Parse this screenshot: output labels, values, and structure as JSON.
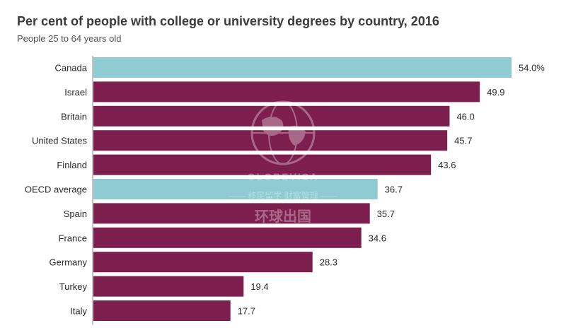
{
  "chart_data": {
    "type": "bar",
    "orientation": "horizontal",
    "title": "Per cent of people with college or university degrees by country, 2016",
    "subtitle": "People 25 to 64 years old",
    "categories": [
      "Canada",
      "Israel",
      "Britain",
      "United States",
      "Finland",
      "OECD average",
      "Spain",
      "France",
      "Germany",
      "Turkey",
      "Italy"
    ],
    "values": [
      54.0,
      49.9,
      46.0,
      45.7,
      43.6,
      36.7,
      35.7,
      34.6,
      28.3,
      19.4,
      17.7
    ],
    "value_labels": [
      "54.0%",
      "49.9",
      "46.0",
      "45.7",
      "43.6",
      "36.7",
      "35.7",
      "34.6",
      "28.3",
      "19.4",
      "17.7"
    ],
    "highlighted": [
      "Canada",
      "OECD average"
    ],
    "colors": {
      "default": "#7d1f4e",
      "highlight": "#8ecbd3"
    },
    "xlim": [
      0,
      54.0
    ],
    "grid": false,
    "legend": "none"
  },
  "watermark": {
    "brand": "GLOBEVISA",
    "tagline": "—— 移民留学 财富管理 ——",
    "chinese_name": "环球出国"
  }
}
